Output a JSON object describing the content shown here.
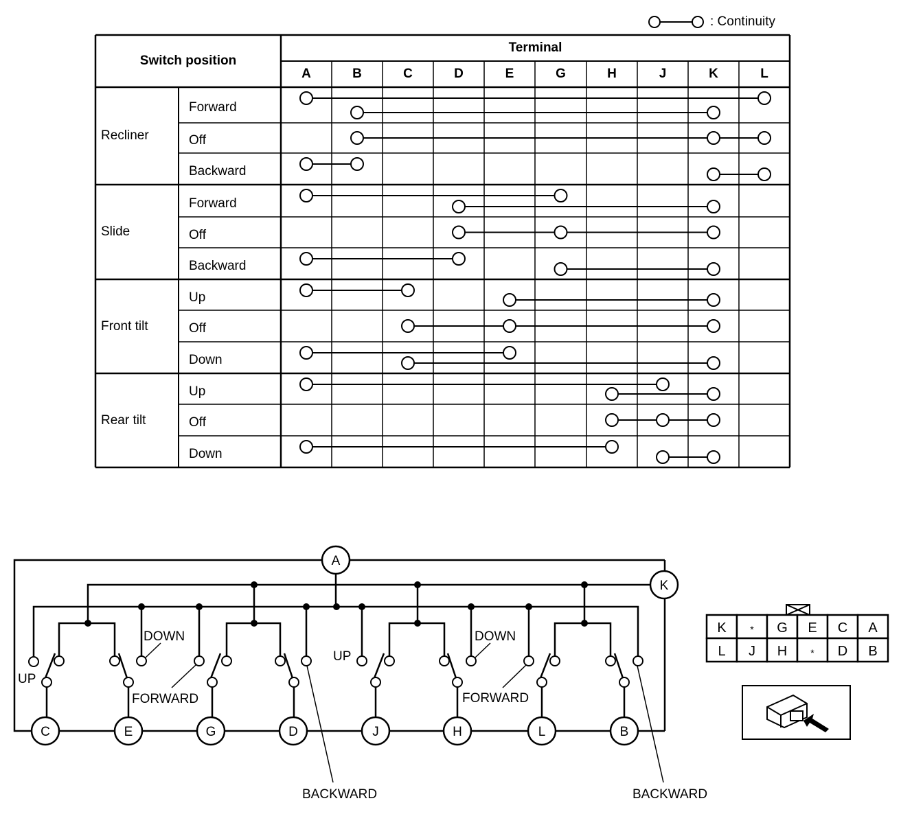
{
  "legend": {
    "label": ": Continuity",
    "icon": "continuity-symbol"
  },
  "table": {
    "switch_position_header": "Switch position",
    "terminal_header": "Terminal",
    "terminals": [
      "A",
      "B",
      "C",
      "D",
      "E",
      "G",
      "H",
      "J",
      "K",
      "L"
    ],
    "groups": [
      {
        "name": "Recliner",
        "rows": [
          {
            "position": "Forward",
            "continuity": [
              [
                "A",
                "L"
              ],
              [
                "B",
                "K"
              ]
            ]
          },
          {
            "position": "Off",
            "continuity": [
              [
                "B",
                "K",
                "L"
              ]
            ]
          },
          {
            "position": "Backward",
            "continuity": [
              [
                "A",
                "B"
              ],
              [
                "K",
                "L"
              ]
            ]
          }
        ]
      },
      {
        "name": "Slide",
        "rows": [
          {
            "position": "Forward",
            "continuity": [
              [
                "A",
                "G"
              ],
              [
                "D",
                "K"
              ]
            ]
          },
          {
            "position": "Off",
            "continuity": [
              [
                "D",
                "G",
                "K"
              ]
            ]
          },
          {
            "position": "Backward",
            "continuity": [
              [
                "A",
                "D"
              ],
              [
                "G",
                "K"
              ]
            ]
          }
        ]
      },
      {
        "name": "Front tilt",
        "rows": [
          {
            "position": "Up",
            "continuity": [
              [
                "A",
                "C"
              ],
              [
                "E",
                "K"
              ]
            ]
          },
          {
            "position": "Off",
            "continuity": [
              [
                "C",
                "E",
                "K"
              ]
            ]
          },
          {
            "position": "Down",
            "continuity": [
              [
                "A",
                "E"
              ],
              [
                "C",
                "K"
              ]
            ]
          }
        ]
      },
      {
        "name": "Rear tilt",
        "rows": [
          {
            "position": "Up",
            "continuity": [
              [
                "A",
                "J"
              ],
              [
                "H",
                "K"
              ]
            ]
          },
          {
            "position": "Off",
            "continuity": [
              [
                "H",
                "J",
                "K"
              ]
            ]
          },
          {
            "position": "Down",
            "continuity": [
              [
                "A",
                "H"
              ],
              [
                "J",
                "K"
              ]
            ]
          }
        ]
      }
    ]
  },
  "schematic": {
    "top_terminals": {
      "a": "A",
      "k": "K"
    },
    "bottom_terminals": [
      "C",
      "E",
      "G",
      "D",
      "J",
      "H",
      "L",
      "B"
    ],
    "labels": {
      "up": "UP",
      "down": "DOWN",
      "forward": "FORWARD",
      "backward": "BACKWARD"
    }
  },
  "connector": {
    "top_row": [
      "K",
      "*",
      "G",
      "E",
      "C",
      "A"
    ],
    "bottom_row": [
      "L",
      "J",
      "H",
      "*",
      "D",
      "B"
    ]
  }
}
